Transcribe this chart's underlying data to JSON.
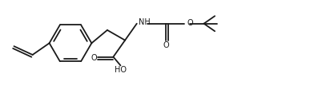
{
  "bg_color": "#ffffff",
  "line_color": "#1a1a1a",
  "line_width": 1.3,
  "font_size": 7.0,
  "fig_width": 3.87,
  "fig_height": 1.07,
  "dpi": 100,
  "xlim": [
    0.0,
    9.5
  ],
  "ylim": [
    0.2,
    2.8
  ]
}
